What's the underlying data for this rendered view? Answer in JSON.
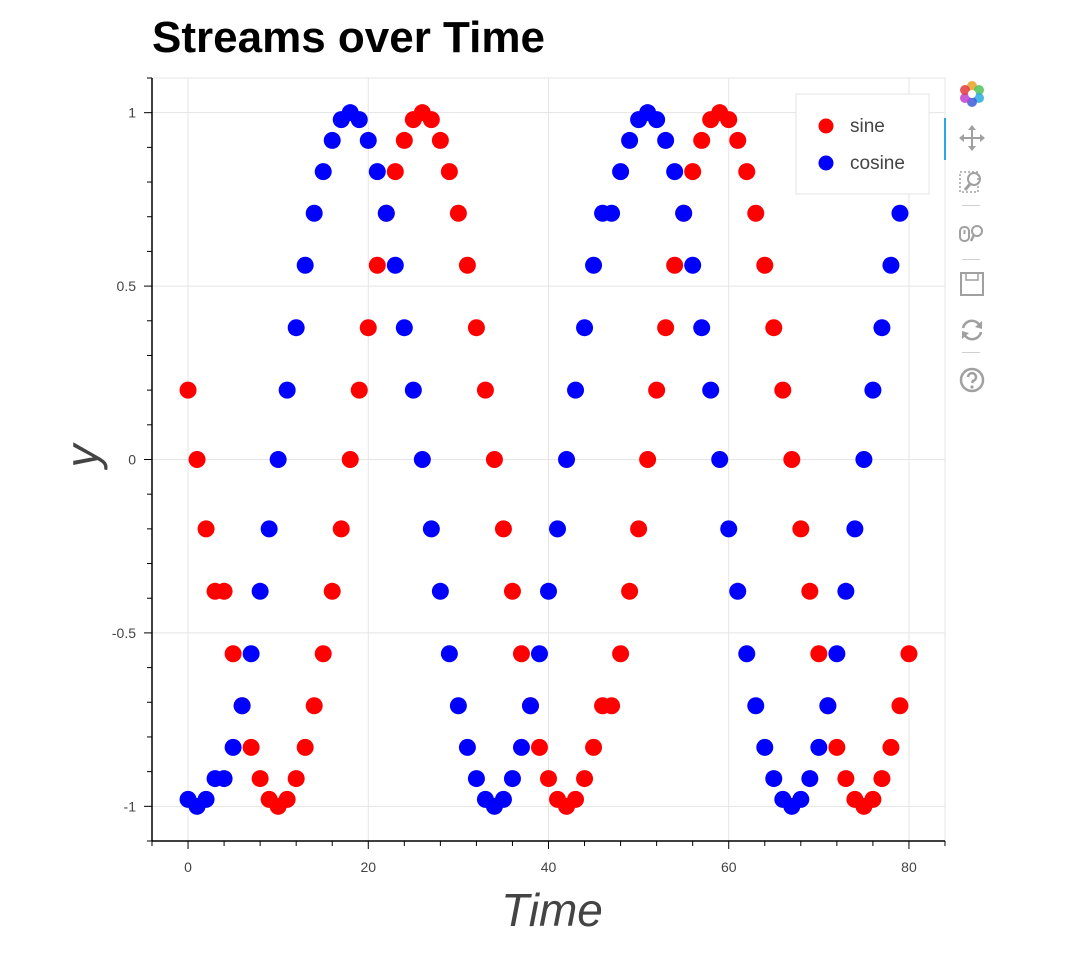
{
  "chart_data": {
    "type": "scatter",
    "title": "Streams over Time",
    "xlabel": "Time",
    "ylabel": "y",
    "xlim": [
      -4,
      84
    ],
    "ylim": [
      -1.1,
      1.1
    ],
    "x_ticks": [
      0,
      20,
      40,
      60,
      80
    ],
    "x_tick_labels": [
      "0",
      "20",
      "40",
      "60",
      "80"
    ],
    "y_ticks": [
      -1,
      -0.5,
      0,
      0.5,
      1
    ],
    "y_tick_labels": [
      "-1",
      "-0.5",
      "0",
      "0.5",
      "1"
    ],
    "grid": true,
    "legend_position": "top-right",
    "series": [
      {
        "name": "sine",
        "color": "#ff0000",
        "x": [
          0,
          1,
          2,
          3,
          4,
          5,
          6,
          7,
          8,
          9,
          10,
          11,
          12,
          13,
          14,
          15,
          16,
          17,
          18,
          19,
          20,
          21,
          22,
          23,
          24,
          25,
          26,
          27,
          28,
          29,
          30,
          31,
          32,
          33,
          34,
          35,
          36,
          37,
          38,
          39,
          40,
          41,
          42,
          43,
          44,
          45,
          46,
          47,
          48,
          49,
          50,
          51,
          52,
          53,
          54,
          55,
          56,
          57,
          58,
          59,
          60,
          61,
          62,
          63,
          64,
          65,
          66,
          67,
          68,
          69,
          70,
          71,
          72,
          73,
          74,
          75,
          76,
          77,
          78,
          79,
          80
        ],
        "y": [
          0.2,
          0,
          -0.2,
          -0.38,
          -0.38,
          -0.56,
          -0.71,
          -0.83,
          -0.92,
          -0.98,
          -1,
          -0.98,
          -0.92,
          -0.83,
          -0.71,
          -0.56,
          -0.38,
          -0.2,
          0,
          0.2,
          0.38,
          0.56,
          0.71,
          0.83,
          0.92,
          0.98,
          1,
          0.98,
          0.92,
          0.83,
          0.71,
          0.56,
          0.38,
          0.2,
          0,
          -0.2,
          -0.38,
          -0.56,
          -0.71,
          -0.83,
          -0.92,
          -0.98,
          -1,
          -0.98,
          -0.92,
          -0.83,
          -0.71,
          -0.71,
          -0.56,
          -0.38,
          -0.2,
          0,
          0.2,
          0.38,
          0.56,
          0.71,
          0.83,
          0.92,
          0.98,
          1,
          0.98,
          0.92,
          0.83,
          0.71,
          0.56,
          0.38,
          0.2,
          0,
          -0.2,
          -0.38,
          -0.56,
          -0.71,
          -0.83,
          -0.92,
          -0.98,
          -1,
          -0.98,
          -0.92,
          -0.83,
          -0.71,
          -0.56
        ]
      },
      {
        "name": "cosine",
        "color": "#0000ff",
        "x": [
          0,
          1,
          2,
          3,
          4,
          5,
          6,
          7,
          8,
          9,
          10,
          11,
          12,
          13,
          14,
          15,
          16,
          17,
          18,
          19,
          20,
          21,
          22,
          23,
          24,
          25,
          26,
          27,
          28,
          29,
          30,
          31,
          32,
          33,
          34,
          35,
          36,
          37,
          38,
          39,
          40,
          41,
          42,
          43,
          44,
          45,
          46,
          47,
          48,
          49,
          50,
          51,
          52,
          53,
          54,
          55,
          56,
          57,
          58,
          59,
          60,
          61,
          62,
          63,
          64,
          65,
          66,
          67,
          68,
          69,
          70,
          71,
          72,
          73,
          74,
          75,
          76,
          77,
          78,
          79,
          80
        ],
        "y": [
          -0.98,
          -1,
          -0.98,
          -0.92,
          -0.92,
          -0.83,
          -0.71,
          -0.56,
          -0.38,
          -0.2,
          0,
          0.2,
          0.38,
          0.56,
          0.71,
          0.83,
          0.92,
          0.98,
          1,
          0.98,
          0.92,
          0.83,
          0.71,
          0.56,
          0.38,
          0.2,
          0,
          -0.2,
          -0.38,
          -0.56,
          -0.71,
          -0.83,
          -0.92,
          -0.98,
          -1,
          -0.98,
          -0.92,
          -0.83,
          -0.71,
          -0.56,
          -0.38,
          -0.2,
          0,
          0.2,
          0.38,
          0.56,
          0.71,
          0.71,
          0.83,
          0.92,
          0.98,
          1,
          0.98,
          0.92,
          0.83,
          0.71,
          0.56,
          0.38,
          0.2,
          0,
          -0.2,
          -0.38,
          -0.56,
          -0.71,
          -0.83,
          -0.92,
          -0.98,
          -1,
          -0.98,
          -0.92,
          -0.83,
          -0.71,
          -0.56,
          -0.38,
          -0.2,
          0,
          0.2,
          0.38,
          0.56,
          0.71,
          0.83
        ]
      }
    ]
  },
  "toolbar": {
    "tools": [
      "bokeh-logo-icon",
      "pan-icon",
      "box-zoom-icon",
      "wheel-zoom-icon",
      "save-icon",
      "reset-icon",
      "help-icon"
    ]
  }
}
